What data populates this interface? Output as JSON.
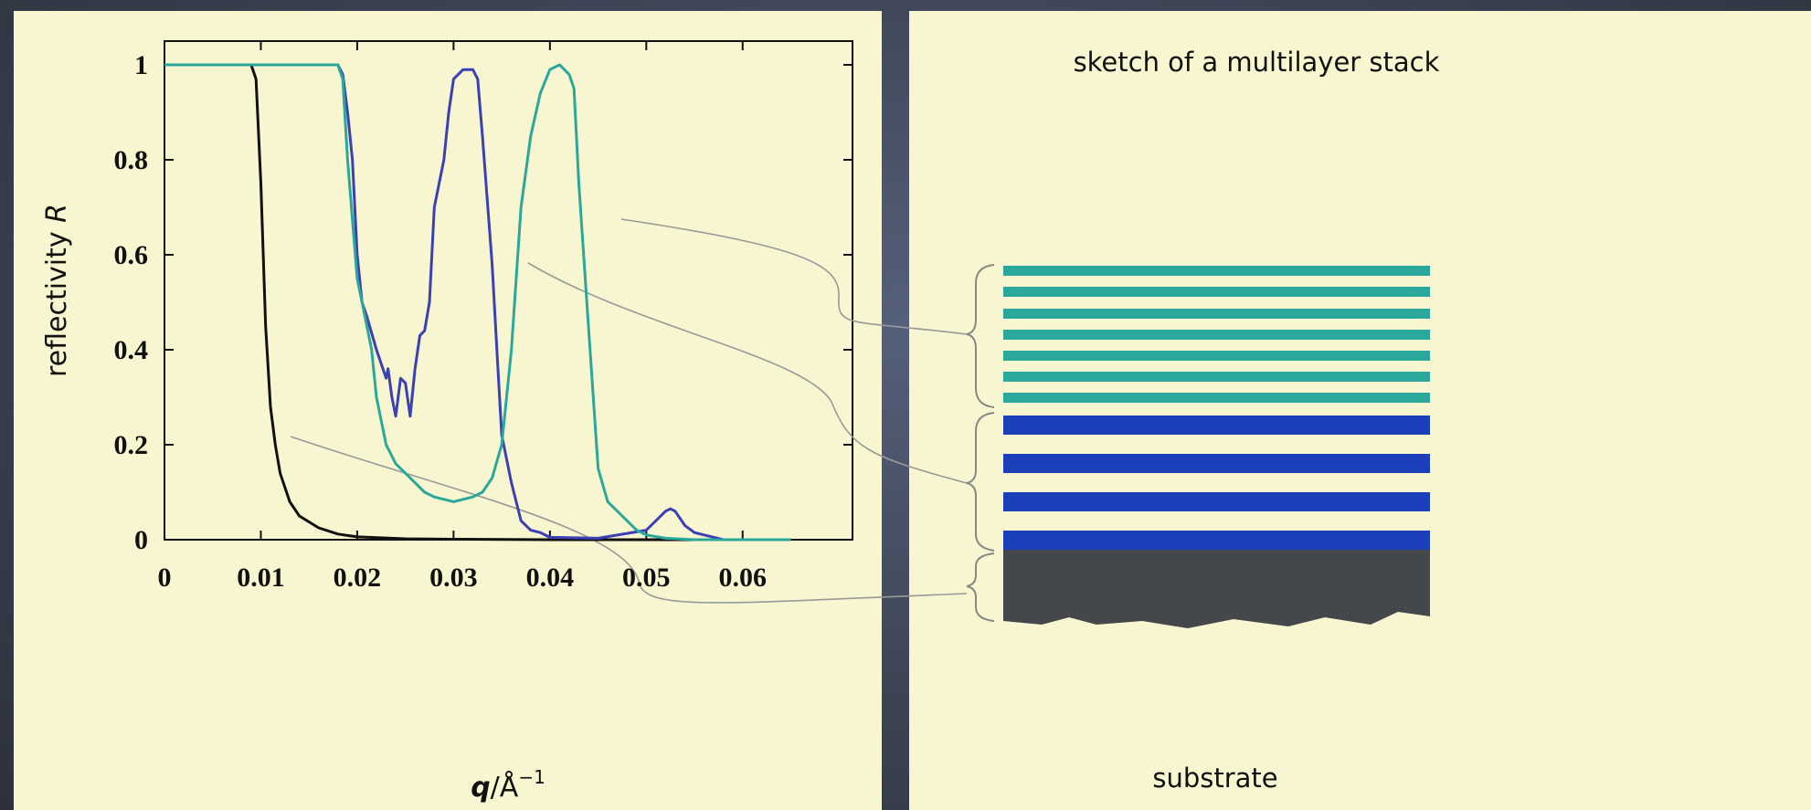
{
  "chart_data": {
    "type": "line",
    "xlabel": [
      "q",
      "/Å",
      "−1"
    ],
    "ylabel": [
      "reflectivity ",
      "R"
    ],
    "xlim": [
      0,
      0.0714
    ],
    "ylim": [
      0,
      1.05
    ],
    "xticks": [
      0,
      0.01,
      0.02,
      0.03,
      0.04,
      0.05,
      0.06
    ],
    "yticks": [
      0,
      0.2,
      0.4,
      0.6,
      0.8,
      1
    ],
    "grid": false,
    "series": [
      {
        "color": "#111111",
        "x": [
          0,
          0.009,
          0.0095,
          0.01,
          0.0105,
          0.011,
          0.0115,
          0.012,
          0.013,
          0.014,
          0.016,
          0.018,
          0.02,
          0.025,
          0.03,
          0.04,
          0.05,
          0.065
        ],
        "values": [
          1,
          1,
          0.97,
          0.75,
          0.45,
          0.28,
          0.2,
          0.14,
          0.08,
          0.05,
          0.025,
          0.012,
          0.006,
          0.002,
          0.001,
          0,
          0,
          0
        ]
      },
      {
        "color": "#3b40b3",
        "x": [
          0,
          0.018,
          0.0185,
          0.019,
          0.0195,
          0.02,
          0.0205,
          0.021,
          0.022,
          0.023,
          0.0232,
          0.0236,
          0.024,
          0.0245,
          0.025,
          0.0255,
          0.026,
          0.0265,
          0.027,
          0.0275,
          0.028,
          0.029,
          0.0295,
          0.03,
          0.031,
          0.032,
          0.0325,
          0.033,
          0.034,
          0.0345,
          0.035,
          0.036,
          0.037,
          0.038,
          0.039,
          0.04,
          0.045,
          0.05,
          0.051,
          0.052,
          0.0525,
          0.053,
          0.054,
          0.055,
          0.056,
          0.058,
          0.065
        ],
        "values": [
          1,
          1,
          0.98,
          0.9,
          0.8,
          0.6,
          0.5,
          0.47,
          0.4,
          0.34,
          0.36,
          0.3,
          0.26,
          0.34,
          0.33,
          0.26,
          0.36,
          0.43,
          0.44,
          0.5,
          0.7,
          0.8,
          0.9,
          0.97,
          0.99,
          0.99,
          0.97,
          0.85,
          0.58,
          0.4,
          0.22,
          0.12,
          0.04,
          0.02,
          0.015,
          0.005,
          0.003,
          0.02,
          0.04,
          0.06,
          0.065,
          0.06,
          0.03,
          0.015,
          0.01,
          0,
          0
        ]
      },
      {
        "color": "#2aa89c",
        "x": [
          0,
          0.018,
          0.0185,
          0.019,
          0.02,
          0.021,
          0.0215,
          0.022,
          0.023,
          0.024,
          0.025,
          0.026,
          0.027,
          0.028,
          0.029,
          0.03,
          0.031,
          0.032,
          0.033,
          0.034,
          0.035,
          0.036,
          0.037,
          0.038,
          0.039,
          0.04,
          0.041,
          0.042,
          0.0425,
          0.043,
          0.044,
          0.045,
          0.046,
          0.047,
          0.048,
          0.049,
          0.05,
          0.052,
          0.055,
          0.065
        ],
        "values": [
          1,
          1,
          0.97,
          0.8,
          0.55,
          0.45,
          0.4,
          0.3,
          0.2,
          0.16,
          0.14,
          0.12,
          0.1,
          0.09,
          0.085,
          0.08,
          0.085,
          0.09,
          0.1,
          0.13,
          0.2,
          0.4,
          0.7,
          0.85,
          0.94,
          0.99,
          1,
          0.98,
          0.95,
          0.75,
          0.45,
          0.15,
          0.08,
          0.06,
          0.04,
          0.02,
          0.01,
          0.003,
          0,
          0
        ]
      }
    ]
  },
  "sketch": {
    "title": "sketch of a multilayer stack",
    "substrate": "substrate"
  }
}
